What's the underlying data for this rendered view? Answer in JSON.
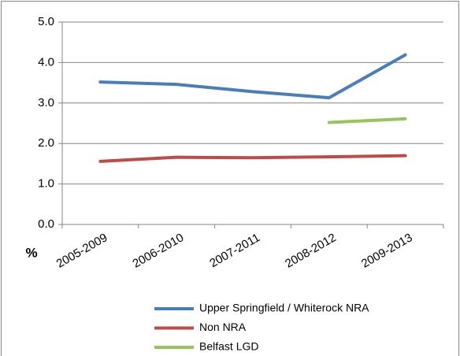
{
  "chart_data": {
    "type": "line",
    "categories": [
      "2005-2009",
      "2006-2010",
      "2007-2011",
      "2008-2012",
      "2009-2013"
    ],
    "y_label": "%",
    "series": [
      {
        "name": "Upper Springfield / Whiterock NRA",
        "color": "#4a7ebb",
        "values": [
          3.52,
          3.46,
          3.28,
          3.13,
          4.19
        ]
      },
      {
        "name": "Non NRA",
        "color": "#be4b48",
        "values": [
          1.56,
          1.66,
          1.65,
          1.67,
          1.7
        ]
      },
      {
        "name": "Belfast LGD",
        "color": "#98c45a",
        "values": [
          null,
          null,
          null,
          2.52,
          2.61
        ]
      }
    ],
    "ylim": [
      0,
      5
    ],
    "yticks": [
      {
        "value": 0,
        "label": "0.0"
      },
      {
        "value": 1,
        "label": "1.0"
      },
      {
        "value": 2,
        "label": "2.0"
      },
      {
        "value": 3,
        "label": "3.0"
      },
      {
        "value": 4,
        "label": "4.0"
      },
      {
        "value": 5,
        "label": "5.0"
      }
    ],
    "grid": true
  }
}
